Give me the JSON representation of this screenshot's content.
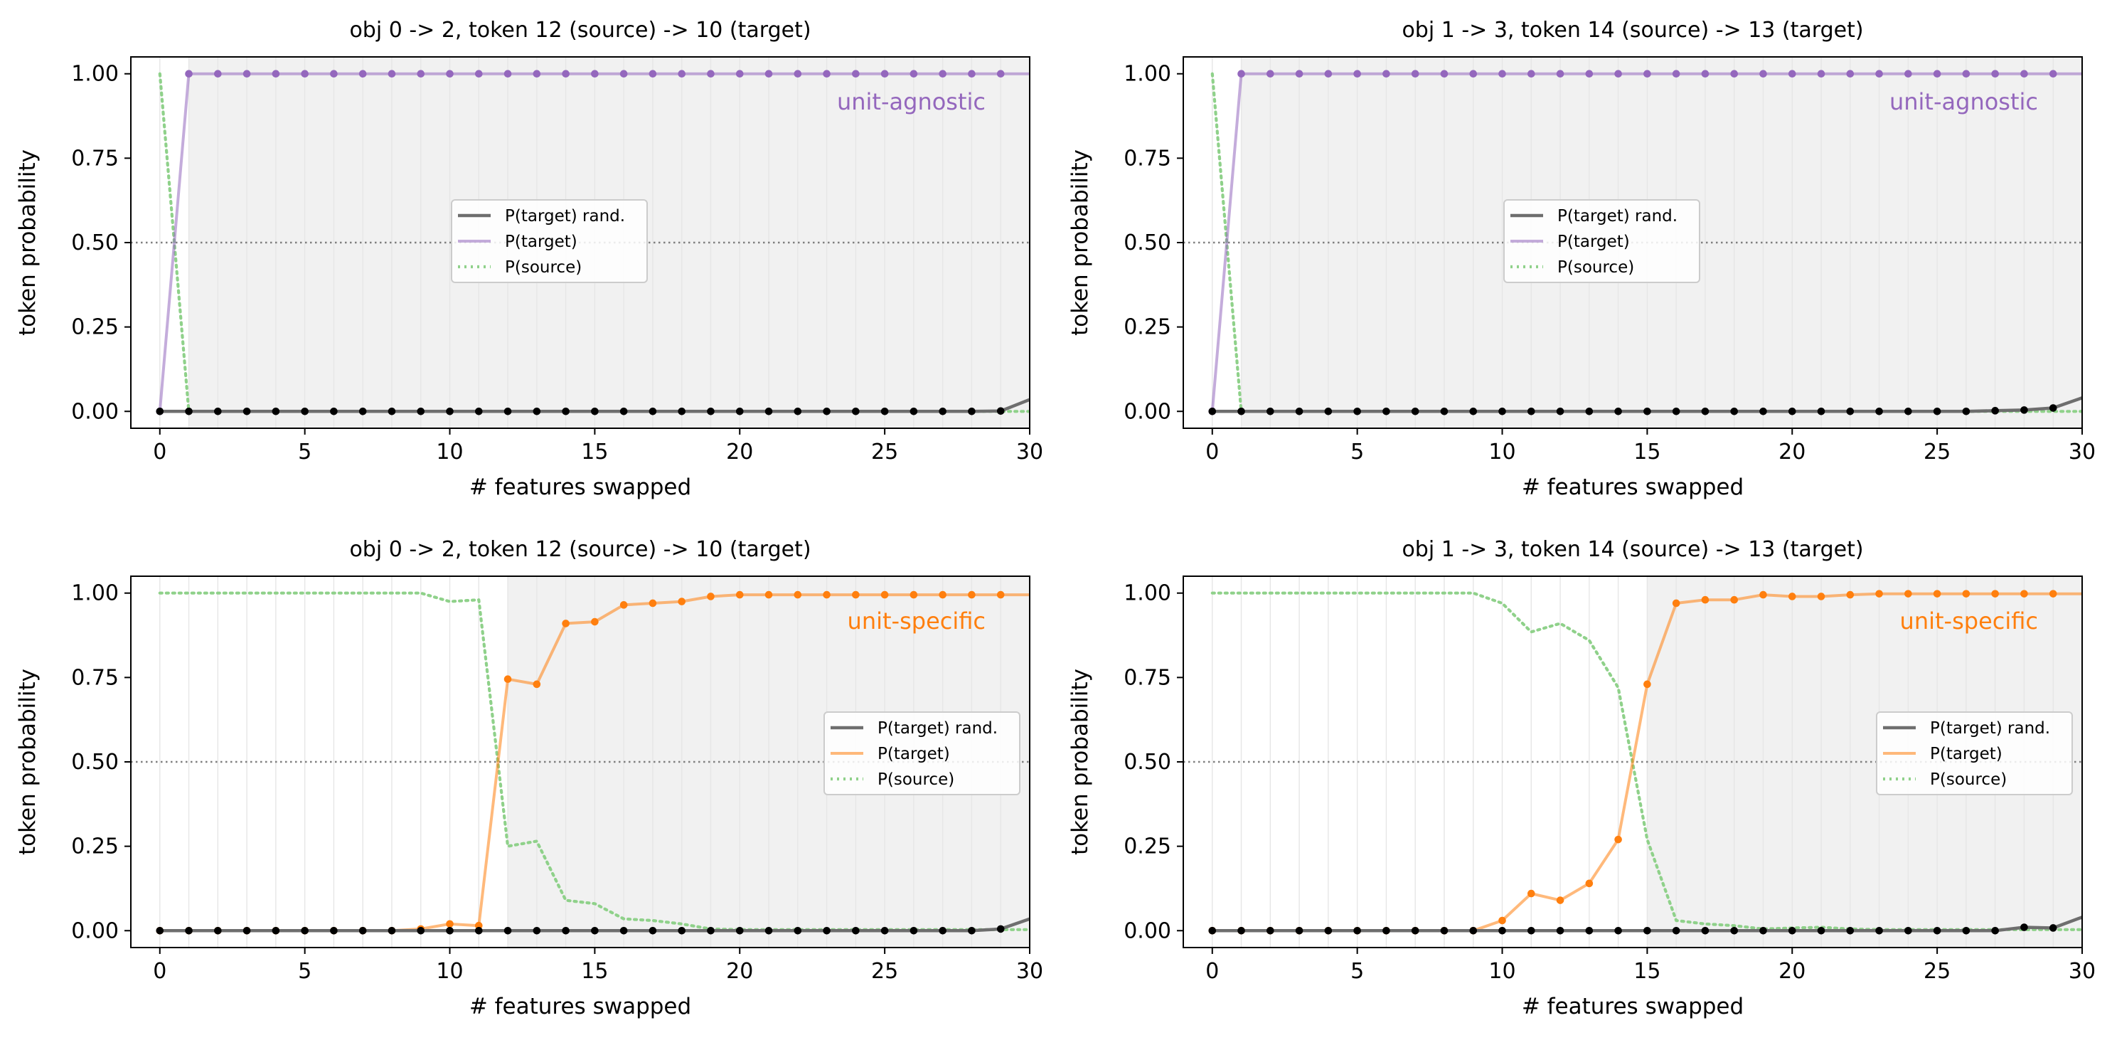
{
  "figure": {
    "layout": "2x2 grid"
  },
  "colors": {
    "agnostic": "#9467bd",
    "specific": "#ff7f0e",
    "source": "#8fd18a",
    "random": "#6e6e6e",
    "random_marker": "#000000",
    "shade": "#f1f1f1",
    "grid": "#e6e6e6",
    "hline": "#7f7f7f"
  },
  "chart_data": [
    {
      "type": "line",
      "title": "obj 0 -> 2, token 12 (source) -> 10 (target)",
      "xlabel": "# features swapped",
      "ylabel": "token probability",
      "xlim": [
        -1,
        30
      ],
      "ylim": [
        -0.05,
        1.05
      ],
      "xticks": [
        0,
        5,
        10,
        15,
        20,
        25,
        30
      ],
      "xtick_labels": [
        "0",
        "5",
        "10",
        "15",
        "20",
        "25",
        "30"
      ],
      "yticks": [
        0,
        0.25,
        0.5,
        0.75,
        1.0
      ],
      "ytick_labels": [
        "0.00",
        "0.25",
        "0.50",
        "0.75",
        "1.00"
      ],
      "hline": 0.5,
      "shade_from": 1,
      "grid_x": true,
      "annotation": "unit-agnostic",
      "annotation_color": "#9467bd",
      "legend_position": "center",
      "legend": [
        "P(target) rand.",
        "P(target)",
        "P(source)"
      ],
      "x": [
        0,
        1,
        2,
        3,
        4,
        5,
        6,
        7,
        8,
        9,
        10,
        11,
        12,
        13,
        14,
        15,
        16,
        17,
        18,
        19,
        20,
        21,
        22,
        23,
        24,
        25,
        26,
        27,
        28,
        29,
        30
      ],
      "series": [
        {
          "name": "P(target) rand.",
          "values": [
            0,
            0,
            0,
            0,
            0,
            0,
            0,
            0,
            0,
            0,
            0,
            0,
            0,
            0,
            0,
            0,
            0,
            0,
            0,
            0,
            0,
            0,
            0,
            0,
            0,
            0,
            0,
            0,
            0,
            0.001,
            0.035
          ]
        },
        {
          "name": "P(target)",
          "values": [
            0,
            1,
            1,
            1,
            1,
            1,
            1,
            1,
            1,
            1,
            1,
            1,
            1,
            1,
            1,
            1,
            1,
            1,
            1,
            1,
            1,
            1,
            1,
            1,
            1,
            1,
            1,
            1,
            1,
            1,
            1
          ]
        },
        {
          "name": "P(source)",
          "values": [
            1,
            0,
            0,
            0,
            0,
            0,
            0,
            0,
            0,
            0,
            0,
            0,
            0,
            0,
            0,
            0,
            0,
            0,
            0,
            0,
            0,
            0,
            0,
            0,
            0,
            0,
            0,
            0,
            0,
            0,
            0
          ]
        }
      ]
    },
    {
      "type": "line",
      "title": "obj 1 -> 3, token 14 (source) -> 13 (target)",
      "xlabel": "# features swapped",
      "ylabel": "token probability",
      "xlim": [
        -1,
        30
      ],
      "ylim": [
        -0.05,
        1.05
      ],
      "xticks": [
        0,
        5,
        10,
        15,
        20,
        25,
        30
      ],
      "xtick_labels": [
        "0",
        "5",
        "10",
        "15",
        "20",
        "25",
        "30"
      ],
      "yticks": [
        0,
        0.25,
        0.5,
        0.75,
        1.0
      ],
      "ytick_labels": [
        "0.00",
        "0.25",
        "0.50",
        "0.75",
        "1.00"
      ],
      "hline": 0.5,
      "shade_from": 1,
      "grid_x": true,
      "annotation": "unit-agnostic",
      "annotation_color": "#9467bd",
      "legend_position": "center",
      "legend": [
        "P(target) rand.",
        "P(target)",
        "P(source)"
      ],
      "x": [
        0,
        1,
        2,
        3,
        4,
        5,
        6,
        7,
        8,
        9,
        10,
        11,
        12,
        13,
        14,
        15,
        16,
        17,
        18,
        19,
        20,
        21,
        22,
        23,
        24,
        25,
        26,
        27,
        28,
        29,
        30
      ],
      "series": [
        {
          "name": "P(target) rand.",
          "values": [
            0,
            0,
            0,
            0,
            0,
            0,
            0,
            0,
            0,
            0,
            0,
            0,
            0,
            0,
            0,
            0,
            0,
            0,
            0,
            0,
            0,
            0,
            0,
            0,
            0,
            0,
            0,
            0.002,
            0.004,
            0.01,
            0.04
          ]
        },
        {
          "name": "P(target)",
          "values": [
            0,
            1,
            1,
            1,
            1,
            1,
            1,
            1,
            1,
            1,
            1,
            1,
            1,
            1,
            1,
            1,
            1,
            1,
            1,
            1,
            1,
            1,
            1,
            1,
            1,
            1,
            1,
            1,
            1,
            1,
            1
          ]
        },
        {
          "name": "P(source)",
          "values": [
            1,
            0,
            0,
            0,
            0,
            0,
            0,
            0,
            0,
            0,
            0,
            0,
            0,
            0,
            0,
            0,
            0,
            0,
            0,
            0,
            0,
            0,
            0,
            0,
            0,
            0,
            0,
            0,
            0,
            0,
            0
          ]
        }
      ]
    },
    {
      "type": "line",
      "title": "obj 0 -> 2, token 12 (source) -> 10 (target)",
      "xlabel": "# features swapped",
      "ylabel": "token probability",
      "xlim": [
        -1,
        30
      ],
      "ylim": [
        -0.05,
        1.05
      ],
      "xticks": [
        0,
        5,
        10,
        15,
        20,
        25,
        30
      ],
      "xtick_labels": [
        "0",
        "5",
        "10",
        "15",
        "20",
        "25",
        "30"
      ],
      "yticks": [
        0,
        0.25,
        0.5,
        0.75,
        1.0
      ],
      "ytick_labels": [
        "0.00",
        "0.25",
        "0.50",
        "0.75",
        "1.00"
      ],
      "hline": 0.5,
      "shade_from": 12,
      "grid_x": true,
      "annotation": "unit-specific",
      "annotation_color": "#ff7f0e",
      "legend_position": "center right",
      "legend": [
        "P(target) rand.",
        "P(target)",
        "P(source)"
      ],
      "x": [
        0,
        1,
        2,
        3,
        4,
        5,
        6,
        7,
        8,
        9,
        10,
        11,
        12,
        13,
        14,
        15,
        16,
        17,
        18,
        19,
        20,
        21,
        22,
        23,
        24,
        25,
        26,
        27,
        28,
        29,
        30
      ],
      "series": [
        {
          "name": "P(target) rand.",
          "values": [
            0,
            0,
            0,
            0,
            0,
            0,
            0,
            0,
            0,
            0,
            0,
            0,
            0,
            0,
            0,
            0,
            0,
            0,
            0,
            0,
            0,
            0,
            0,
            0,
            0,
            0,
            0,
            0,
            0,
            0.005,
            0.035
          ]
        },
        {
          "name": "P(target)",
          "values": [
            0,
            0,
            0,
            0,
            0,
            0,
            0,
            0,
            0,
            0.005,
            0.02,
            0.015,
            0.745,
            0.73,
            0.91,
            0.915,
            0.965,
            0.97,
            0.975,
            0.99,
            0.995,
            0.995,
            0.995,
            0.995,
            0.995,
            0.995,
            0.995,
            0.995,
            0.995,
            0.995,
            0.995
          ]
        },
        {
          "name": "P(source)",
          "values": [
            1,
            1,
            1,
            1,
            1,
            1,
            1,
            1,
            1,
            1,
            0.975,
            0.98,
            0.25,
            0.265,
            0.09,
            0.08,
            0.035,
            0.03,
            0.02,
            0.005,
            0.003,
            0.003,
            0.003,
            0.003,
            0.003,
            0.003,
            0.003,
            0.003,
            0.003,
            0.003,
            0.003
          ]
        }
      ]
    },
    {
      "type": "line",
      "title": "obj 1 -> 3, token 14 (source) -> 13 (target)",
      "xlabel": "# features swapped",
      "ylabel": "token probability",
      "xlim": [
        -1,
        30
      ],
      "ylim": [
        -0.05,
        1.05
      ],
      "xticks": [
        0,
        5,
        10,
        15,
        20,
        25,
        30
      ],
      "xtick_labels": [
        "0",
        "5",
        "10",
        "15",
        "20",
        "25",
        "30"
      ],
      "yticks": [
        0,
        0.25,
        0.5,
        0.75,
        1.0
      ],
      "ytick_labels": [
        "0.00",
        "0.25",
        "0.50",
        "0.75",
        "1.00"
      ],
      "hline": 0.5,
      "shade_from": 15,
      "grid_x": true,
      "annotation": "unit-specific",
      "annotation_color": "#ff7f0e",
      "legend_position": "center right",
      "legend": [
        "P(target) rand.",
        "P(target)",
        "P(source)"
      ],
      "x": [
        0,
        1,
        2,
        3,
        4,
        5,
        6,
        7,
        8,
        9,
        10,
        11,
        12,
        13,
        14,
        15,
        16,
        17,
        18,
        19,
        20,
        21,
        22,
        23,
        24,
        25,
        26,
        27,
        28,
        29,
        30
      ],
      "series": [
        {
          "name": "P(target) rand.",
          "values": [
            0,
            0,
            0,
            0,
            0,
            0,
            0,
            0,
            0,
            0,
            0,
            0,
            0,
            0,
            0,
            0,
            0,
            0,
            0,
            0,
            0,
            0,
            0,
            0,
            0,
            0,
            0,
            0,
            0.01,
            0.008,
            0.04
          ]
        },
        {
          "name": "P(target)",
          "values": [
            0,
            0,
            0,
            0,
            0,
            0,
            0,
            0,
            0,
            0,
            0.03,
            0.11,
            0.09,
            0.14,
            0.27,
            0.73,
            0.97,
            0.98,
            0.98,
            0.995,
            0.99,
            0.99,
            0.995,
            0.998,
            0.998,
            0.998,
            0.998,
            0.998,
            0.998,
            0.998,
            0.998
          ]
        },
        {
          "name": "P(source)",
          "values": [
            1,
            1,
            1,
            1,
            1,
            1,
            1,
            1,
            1,
            1,
            0.97,
            0.885,
            0.91,
            0.86,
            0.72,
            0.27,
            0.03,
            0.02,
            0.015,
            0.005,
            0.008,
            0.01,
            0.005,
            0.003,
            0.003,
            0.003,
            0.003,
            0.003,
            0.003,
            0.003,
            0.003
          ]
        }
      ]
    }
  ]
}
